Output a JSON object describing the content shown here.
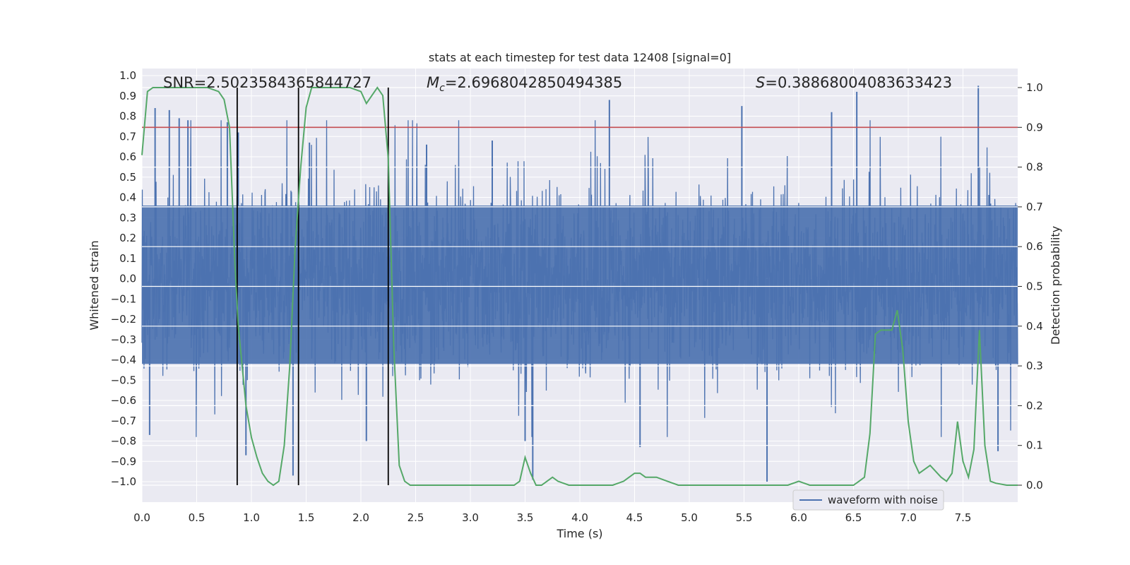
{
  "chart_data": {
    "type": "line",
    "title": "stats at each timestep for test data 12408 [signal=0]",
    "xlabel": "Time (s)",
    "ylabel_left": "Whitened strain",
    "ylabel_right": "Detection probability",
    "xlim": [
      0.0,
      8.0
    ],
    "ylim_left": [
      -1.09,
      1.05
    ],
    "ylim_right": [
      -0.05,
      1.03
    ],
    "x_ticks": [
      "0.0",
      "0.5",
      "1.0",
      "1.5",
      "2.0",
      "2.5",
      "3.0",
      "3.5",
      "4.0",
      "4.5",
      "5.0",
      "5.5",
      "6.0",
      "6.5",
      "7.0",
      "7.5"
    ],
    "y_left_ticks": [
      "1.0",
      "0.9",
      "0.8",
      "0.7",
      "0.6",
      "0.5",
      "0.4",
      "0.3",
      "0.2",
      "0.1",
      "0.0",
      "−0.1",
      "−0.2",
      "−0.3",
      "−0.4",
      "−0.5",
      "−0.6",
      "−0.7",
      "−0.8",
      "−0.9",
      "−1.0"
    ],
    "y_right_ticks": [
      "1.0",
      "0.9",
      "0.8",
      "0.7",
      "0.6",
      "0.5",
      "0.4",
      "0.3",
      "0.2",
      "0.1",
      "0.0"
    ],
    "threshold": 0.9,
    "vertical_lines": [
      0.87,
      1.43,
      2.25
    ],
    "annotations": {
      "snr": "SNR=2.5023584365844727",
      "mc": "=2.6968042850494385",
      "mc_symbol": "M",
      "mc_sub": "c",
      "s": "=0.38868004083633423",
      "s_symbol": "S"
    },
    "series": [
      {
        "name": "waveform with noise",
        "axis": "left",
        "color": "#4c72b0",
        "envelope_typical": 0.5,
        "spikes": [
          {
            "x": 0.12,
            "y": 0.84
          },
          {
            "x": 0.25,
            "y": 0.83
          },
          {
            "x": 0.34,
            "y": 0.79
          },
          {
            "x": 0.42,
            "y": 0.78
          },
          {
            "x": 0.78,
            "y": 0.77
          },
          {
            "x": 0.88,
            "y": 0.72
          },
          {
            "x": 0.95,
            "y": -0.87
          },
          {
            "x": 1.38,
            "y": -0.97
          },
          {
            "x": 1.53,
            "y": 0.67
          },
          {
            "x": 2.6,
            "y": 0.66
          },
          {
            "x": 3.2,
            "y": 0.68
          },
          {
            "x": 3.57,
            "y": -0.99
          },
          {
            "x": 4.27,
            "y": 0.88
          },
          {
            "x": 4.55,
            "y": -0.83
          },
          {
            "x": 5.48,
            "y": 0.85
          },
          {
            "x": 5.71,
            "y": -1.0
          },
          {
            "x": 6.3,
            "y": 0.82
          },
          {
            "x": 6.53,
            "y": 0.92
          },
          {
            "x": 7.64,
            "y": 0.95
          },
          {
            "x": 7.82,
            "y": -0.85
          },
          {
            "x": 0.07,
            "y": -0.77
          },
          {
            "x": 2.05,
            "y": -0.8
          },
          {
            "x": 3.5,
            "y": -0.8
          }
        ]
      },
      {
        "name": "detection probability",
        "axis": "right",
        "color": "#55a868",
        "x": [
          0.0,
          0.05,
          0.1,
          0.2,
          0.3,
          0.4,
          0.5,
          0.6,
          0.7,
          0.75,
          0.8,
          0.85,
          0.88,
          0.95,
          1.0,
          1.05,
          1.1,
          1.15,
          1.2,
          1.25,
          1.3,
          1.35,
          1.4,
          1.45,
          1.5,
          1.55,
          1.6,
          1.7,
          1.8,
          1.9,
          2.0,
          2.05,
          2.1,
          2.15,
          2.2,
          2.25,
          2.3,
          2.35,
          2.4,
          2.45,
          2.5,
          2.6,
          2.7,
          2.8,
          3.0,
          3.2,
          3.3,
          3.4,
          3.45,
          3.5,
          3.55,
          3.6,
          3.65,
          3.7,
          3.75,
          3.8,
          3.9,
          4.0,
          4.2,
          4.3,
          4.4,
          4.45,
          4.5,
          4.55,
          4.6,
          4.7,
          4.8,
          4.9,
          5.0,
          5.2,
          5.5,
          5.7,
          5.9,
          6.0,
          6.1,
          6.3,
          6.5,
          6.55,
          6.6,
          6.65,
          6.7,
          6.75,
          6.8,
          6.85,
          6.9,
          6.95,
          7.0,
          7.05,
          7.1,
          7.2,
          7.3,
          7.35,
          7.4,
          7.45,
          7.5,
          7.55,
          7.6,
          7.65,
          7.7,
          7.75,
          7.8,
          7.9,
          8.0
        ],
        "y": [
          0.83,
          0.99,
          1.0,
          1.0,
          1.0,
          1.0,
          1.0,
          1.0,
          0.99,
          0.97,
          0.9,
          0.55,
          0.4,
          0.2,
          0.12,
          0.07,
          0.03,
          0.01,
          0.0,
          0.01,
          0.1,
          0.3,
          0.6,
          0.8,
          0.95,
          1.0,
          1.0,
          1.0,
          1.0,
          1.0,
          0.99,
          0.96,
          0.98,
          1.0,
          0.98,
          0.82,
          0.35,
          0.05,
          0.01,
          0.0,
          0.0,
          0.0,
          0.0,
          0.0,
          0.0,
          0.0,
          0.0,
          0.0,
          0.01,
          0.07,
          0.03,
          0.0,
          0.0,
          0.01,
          0.02,
          0.01,
          0.0,
          0.0,
          0.0,
          0.0,
          0.01,
          0.02,
          0.03,
          0.03,
          0.02,
          0.02,
          0.01,
          0.0,
          0.0,
          0.0,
          0.0,
          0.0,
          0.0,
          0.01,
          0.0,
          0.0,
          0.0,
          0.01,
          0.02,
          0.13,
          0.38,
          0.39,
          0.39,
          0.39,
          0.44,
          0.34,
          0.16,
          0.06,
          0.03,
          0.05,
          0.02,
          0.01,
          0.03,
          0.16,
          0.06,
          0.02,
          0.09,
          0.39,
          0.1,
          0.01,
          0.005,
          0.0,
          0.0
        ]
      },
      {
        "name": "threshold",
        "axis": "right",
        "color": "#c44e52",
        "value": 0.9
      }
    ],
    "legend": {
      "placement": "lower-right",
      "entries": [
        "waveform with noise"
      ]
    }
  },
  "colors": {
    "plot_background": "#eaeaf2",
    "grid": "#ffffff",
    "waveform": "#4c72b0",
    "probability": "#55a868",
    "threshold": "#c44e52",
    "vlines": "#000000"
  }
}
